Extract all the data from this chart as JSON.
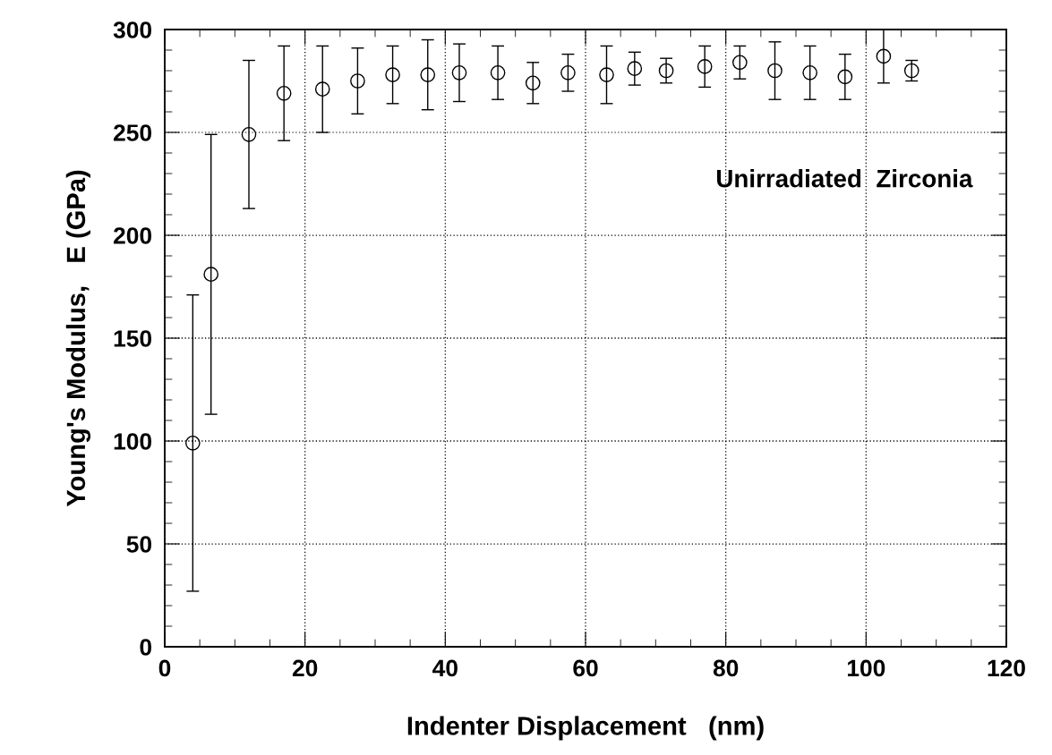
{
  "chart_data": {
    "type": "scatter",
    "xlabel": "Indenter Displacement   (nm)",
    "ylabel": "Young's Modulus,   E (GPa)",
    "x": [
      4,
      6.6,
      12,
      17,
      22.5,
      27.5,
      32.5,
      37.5,
      42,
      47.5,
      52.5,
      57.5,
      63,
      67,
      71.5,
      77,
      82,
      87,
      92,
      97,
      102.5,
      106.5
    ],
    "values": [
      99,
      181,
      249,
      269,
      271,
      275,
      278,
      278,
      279,
      279,
      274,
      279,
      278,
      281,
      280,
      282,
      284,
      280,
      279,
      277,
      287,
      280
    ],
    "errors": [
      72,
      68,
      36,
      23,
      21,
      16,
      14,
      17,
      14,
      13,
      10,
      9,
      14,
      8,
      6,
      10,
      8,
      14,
      13,
      11,
      13,
      5
    ],
    "color": "#000000",
    "marker": "circle",
    "xlim": [
      0,
      120
    ],
    "xticks": [
      0,
      20,
      40,
      60,
      80,
      100,
      120
    ],
    "ylim": [
      0,
      300
    ],
    "yticks": [
      0,
      50,
      100,
      150,
      200,
      250,
      300
    ],
    "grid": true,
    "annotations": [
      "Unirradiated  Zirconia"
    ]
  }
}
